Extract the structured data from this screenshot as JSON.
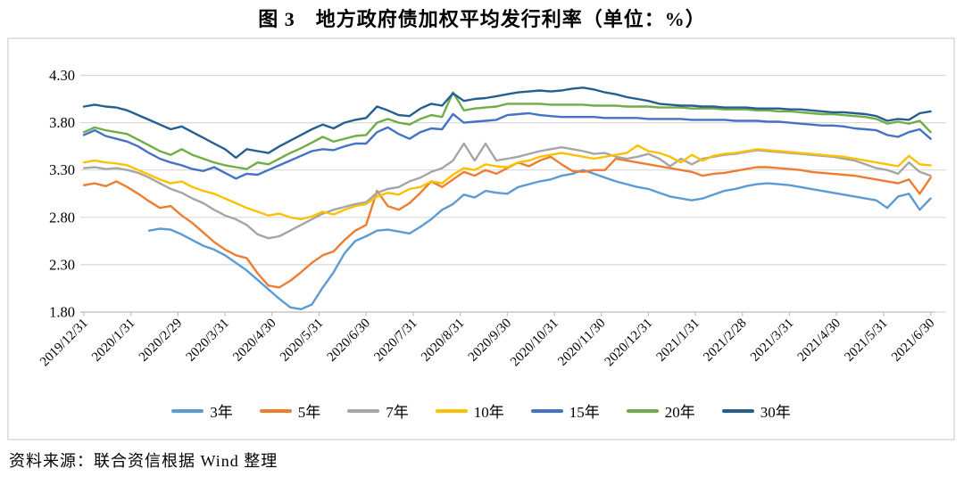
{
  "page": {
    "source": "资料来源：联合资信根据 Wind 整理"
  },
  "chart_data": {
    "type": "line",
    "title": "图 3　地方政府债加权平均发行利率（单位：%）",
    "unit": "%",
    "grid": "horizontal",
    "legend_position": "bottom",
    "y_axis": {
      "min": 1.8,
      "max": 4.3,
      "tick_labels": [
        "4.30",
        "3.80",
        "3.30",
        "2.80",
        "2.30",
        "1.80"
      ],
      "tick_values": [
        4.3,
        3.8,
        3.3,
        2.8,
        2.3,
        1.8
      ]
    },
    "x_axis": {
      "note": "weekly data points; week 0 = 2019/12/31, week 78 = 2021/6/30",
      "tick_labels": [
        "2019/12/31",
        "2020/1/31",
        "2020/2/29",
        "2020/3/31",
        "2020/4/30",
        "2020/5/31",
        "2020/6/30",
        "2020/7/31",
        "2020/8/31",
        "2020/9/30",
        "2020/10/31",
        "2020/11/30",
        "2020/12/31",
        "2021/1/31",
        "2021/2/28",
        "2021/3/31",
        "2021/4/30",
        "2021/5/31",
        "2021/6/30"
      ]
    },
    "series": [
      {
        "name": "3年",
        "color": "#5B9BD5",
        "start_week": 6,
        "values": [
          2.66,
          2.68,
          2.67,
          2.62,
          2.56,
          2.5,
          2.46,
          2.4,
          2.32,
          2.24,
          2.14,
          2.04,
          1.94,
          1.85,
          1.83,
          1.88,
          2.06,
          2.22,
          2.42,
          2.55,
          2.6,
          2.66,
          2.67,
          2.65,
          2.63,
          2.7,
          2.78,
          2.88,
          2.94,
          3.04,
          3.01,
          3.08,
          3.06,
          3.05,
          3.12,
          3.15,
          3.18,
          3.2,
          3.24,
          3.26,
          3.3,
          3.26,
          3.22,
          3.18,
          3.15,
          3.12,
          3.1,
          3.06,
          3.02,
          3.0,
          2.98,
          3.0,
          3.04,
          3.08,
          3.1,
          3.13,
          3.15,
          3.16,
          3.15,
          3.14,
          3.12,
          3.1,
          3.08,
          3.06,
          3.04,
          3.02,
          3.0,
          2.98,
          2.9,
          3.02,
          3.05,
          2.88,
          3.0
        ]
      },
      {
        "name": "5年",
        "color": "#ED7D31",
        "start_week": 0,
        "values": [
          3.14,
          3.16,
          3.13,
          3.18,
          3.12,
          3.05,
          2.97,
          2.9,
          2.92,
          2.82,
          2.74,
          2.64,
          2.54,
          2.46,
          2.4,
          2.37,
          2.21,
          2.08,
          2.06,
          2.13,
          2.22,
          2.32,
          2.4,
          2.44,
          2.56,
          2.66,
          2.72,
          3.08,
          2.92,
          2.88,
          2.95,
          3.06,
          3.18,
          3.12,
          3.2,
          3.28,
          3.24,
          3.3,
          3.26,
          3.32,
          3.38,
          3.34,
          3.4,
          3.44,
          3.36,
          3.29,
          3.28,
          3.3,
          3.3,
          3.42,
          3.4,
          3.38,
          3.36,
          3.34,
          3.32,
          3.3,
          3.28,
          3.24,
          3.26,
          3.27,
          3.29,
          3.31,
          3.33,
          3.33,
          3.32,
          3.31,
          3.3,
          3.28,
          3.27,
          3.26,
          3.25,
          3.24,
          3.22,
          3.2,
          3.18,
          3.16,
          3.2,
          3.05,
          3.22
        ]
      },
      {
        "name": "7年",
        "color": "#A5A5A5",
        "start_week": 0,
        "values": [
          3.32,
          3.33,
          3.31,
          3.32,
          3.3,
          3.27,
          3.22,
          3.16,
          3.1,
          3.06,
          3.0,
          2.95,
          2.88,
          2.82,
          2.78,
          2.72,
          2.62,
          2.58,
          2.6,
          2.66,
          2.72,
          2.78,
          2.84,
          2.88,
          2.91,
          2.94,
          2.96,
          3.06,
          3.1,
          3.12,
          3.18,
          3.22,
          3.28,
          3.32,
          3.4,
          3.58,
          3.4,
          3.58,
          3.4,
          3.42,
          3.44,
          3.47,
          3.5,
          3.52,
          3.54,
          3.52,
          3.5,
          3.47,
          3.48,
          3.44,
          3.42,
          3.44,
          3.47,
          3.42,
          3.34,
          3.42,
          3.36,
          3.42,
          3.44,
          3.46,
          3.47,
          3.49,
          3.51,
          3.5,
          3.49,
          3.48,
          3.47,
          3.46,
          3.45,
          3.44,
          3.42,
          3.4,
          3.36,
          3.32,
          3.3,
          3.26,
          3.38,
          3.28,
          3.24
        ]
      },
      {
        "name": "10年",
        "color": "#FFC000",
        "start_week": 0,
        "values": [
          3.38,
          3.4,
          3.38,
          3.37,
          3.35,
          3.3,
          3.25,
          3.2,
          3.16,
          3.18,
          3.12,
          3.08,
          3.05,
          3.0,
          2.95,
          2.9,
          2.86,
          2.82,
          2.84,
          2.8,
          2.78,
          2.81,
          2.86,
          2.83,
          2.88,
          2.92,
          2.94,
          3.02,
          3.06,
          3.04,
          3.1,
          3.12,
          3.18,
          3.16,
          3.25,
          3.32,
          3.3,
          3.36,
          3.34,
          3.33,
          3.38,
          3.4,
          3.44,
          3.46,
          3.48,
          3.46,
          3.44,
          3.42,
          3.44,
          3.46,
          3.48,
          3.56,
          3.5,
          3.48,
          3.44,
          3.38,
          3.46,
          3.4,
          3.45,
          3.47,
          3.48,
          3.5,
          3.52,
          3.51,
          3.5,
          3.49,
          3.48,
          3.47,
          3.46,
          3.45,
          3.44,
          3.42,
          3.4,
          3.38,
          3.36,
          3.34,
          3.45,
          3.36,
          3.35
        ]
      },
      {
        "name": "15年",
        "color": "#4472C4",
        "start_week": 0,
        "values": [
          3.67,
          3.72,
          3.66,
          3.63,
          3.6,
          3.55,
          3.48,
          3.42,
          3.38,
          3.35,
          3.31,
          3.29,
          3.33,
          3.27,
          3.21,
          3.26,
          3.25,
          3.3,
          3.35,
          3.4,
          3.45,
          3.5,
          3.52,
          3.51,
          3.55,
          3.58,
          3.58,
          3.7,
          3.75,
          3.68,
          3.63,
          3.7,
          3.74,
          3.73,
          3.89,
          3.8,
          3.81,
          3.82,
          3.83,
          3.88,
          3.89,
          3.9,
          3.88,
          3.87,
          3.86,
          3.86,
          3.86,
          3.86,
          3.85,
          3.85,
          3.85,
          3.85,
          3.84,
          3.84,
          3.84,
          3.84,
          3.83,
          3.83,
          3.83,
          3.83,
          3.82,
          3.82,
          3.82,
          3.81,
          3.81,
          3.8,
          3.79,
          3.78,
          3.77,
          3.77,
          3.76,
          3.74,
          3.73,
          3.72,
          3.67,
          3.65,
          3.7,
          3.73,
          3.63
        ]
      },
      {
        "name": "20年",
        "color": "#70AD47",
        "start_week": 0,
        "values": [
          3.7,
          3.75,
          3.72,
          3.7,
          3.68,
          3.62,
          3.56,
          3.5,
          3.46,
          3.52,
          3.46,
          3.42,
          3.38,
          3.35,
          3.33,
          3.31,
          3.38,
          3.36,
          3.42,
          3.48,
          3.53,
          3.59,
          3.65,
          3.6,
          3.63,
          3.66,
          3.67,
          3.8,
          3.84,
          3.8,
          3.78,
          3.84,
          3.88,
          3.86,
          4.12,
          3.93,
          3.95,
          3.96,
          3.97,
          4.0,
          4.0,
          4.0,
          4.0,
          3.99,
          3.99,
          3.99,
          3.99,
          3.98,
          3.98,
          3.98,
          3.97,
          3.97,
          3.97,
          3.96,
          3.96,
          3.96,
          3.95,
          3.95,
          3.95,
          3.94,
          3.94,
          3.94,
          3.93,
          3.93,
          3.92,
          3.92,
          3.91,
          3.9,
          3.89,
          3.89,
          3.88,
          3.87,
          3.86,
          3.84,
          3.79,
          3.81,
          3.79,
          3.82,
          3.7
        ]
      },
      {
        "name": "30年",
        "color": "#255E91",
        "start_week": 0,
        "values": [
          3.97,
          3.99,
          3.97,
          3.96,
          3.93,
          3.88,
          3.83,
          3.78,
          3.73,
          3.76,
          3.7,
          3.64,
          3.58,
          3.52,
          3.43,
          3.52,
          3.5,
          3.48,
          3.55,
          3.61,
          3.67,
          3.73,
          3.78,
          3.74,
          3.8,
          3.83,
          3.85,
          3.97,
          3.93,
          3.88,
          3.87,
          3.95,
          4.0,
          3.98,
          4.11,
          4.03,
          4.05,
          4.06,
          4.08,
          4.1,
          4.12,
          4.13,
          4.14,
          4.13,
          4.14,
          4.16,
          4.17,
          4.15,
          4.12,
          4.1,
          4.07,
          4.05,
          4.03,
          4.0,
          3.99,
          3.98,
          3.98,
          3.97,
          3.97,
          3.96,
          3.96,
          3.96,
          3.95,
          3.95,
          3.95,
          3.94,
          3.94,
          3.93,
          3.92,
          3.91,
          3.91,
          3.9,
          3.89,
          3.87,
          3.82,
          3.84,
          3.83,
          3.9,
          3.92
        ]
      }
    ],
    "style": {
      "grid_color": "#d9d9d9",
      "axis_color": "#bfbfbf",
      "line_width": 2.4
    }
  }
}
